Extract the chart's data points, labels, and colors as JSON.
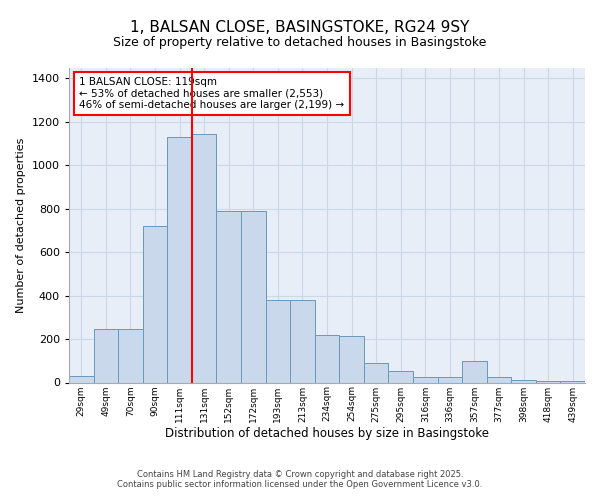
{
  "title_line1": "1, BALSAN CLOSE, BASINGSTOKE, RG24 9SY",
  "title_line2": "Size of property relative to detached houses in Basingstoke",
  "xlabel": "Distribution of detached houses by size in Basingstoke",
  "ylabel": "Number of detached properties",
  "footer_line1": "Contains HM Land Registry data © Crown copyright and database right 2025.",
  "footer_line2": "Contains public sector information licensed under the Open Government Licence v3.0.",
  "categories": [
    "29sqm",
    "49sqm",
    "70sqm",
    "90sqm",
    "111sqm",
    "131sqm",
    "152sqm",
    "172sqm",
    "193sqm",
    "213sqm",
    "234sqm",
    "254sqm",
    "275sqm",
    "295sqm",
    "316sqm",
    "336sqm",
    "357sqm",
    "377sqm",
    "398sqm",
    "418sqm",
    "439sqm"
  ],
  "values": [
    30,
    245,
    245,
    720,
    1130,
    1145,
    790,
    790,
    380,
    380,
    220,
    215,
    90,
    55,
    25,
    25,
    100,
    25,
    10,
    5,
    5
  ],
  "bar_color": "#c9d9eb",
  "bar_edge_color": "#6699bb",
  "vline_color": "red",
  "vline_pos": 4.5,
  "annotation_text": "1 BALSAN CLOSE: 119sqm\n← 53% of detached houses are smaller (2,553)\n46% of semi-detached houses are larger (2,199) →",
  "annotation_box_color": "white",
  "annotation_box_edge_color": "red",
  "ylim": [
    0,
    1450
  ],
  "yticks": [
    0,
    200,
    400,
    600,
    800,
    1000,
    1200,
    1400
  ],
  "grid_color": "#ccd8e8",
  "bg_color": "#e8eef8",
  "fig_bg_color": "#ffffff"
}
